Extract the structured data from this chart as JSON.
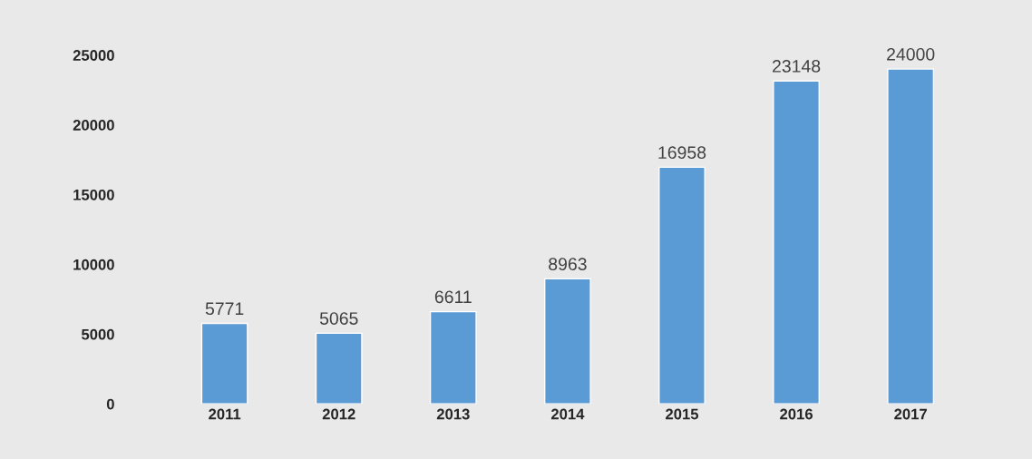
{
  "chart_data": {
    "type": "bar",
    "categories": [
      "2011",
      "2012",
      "2013",
      "2014",
      "2015",
      "2016",
      "2017"
    ],
    "values": [
      5771,
      5065,
      6611,
      8963,
      16958,
      23148,
      24000
    ],
    "color": "#5b9bd5",
    "ylim": [
      0,
      25000
    ],
    "yticks": [
      0,
      5000,
      10000,
      15000,
      20000,
      25000
    ],
    "data_labels": true,
    "grid": false,
    "legend": false
  }
}
